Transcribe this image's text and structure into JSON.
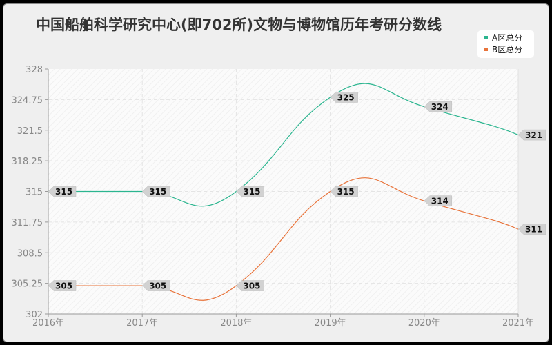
{
  "title": "中国船舶科学研究中心(即702所)文物与博物馆历年考研分数线",
  "legend": [
    {
      "label": "A区总分",
      "color": "#2bb58f"
    },
    {
      "label": "B区总分",
      "color": "#e8733a"
    }
  ],
  "chart_data": {
    "type": "line",
    "title": "中国船舶科学研究中心(即702所)文物与博物馆历年考研分数线",
    "xlabel": "",
    "ylabel": "",
    "categories": [
      "2016年",
      "2017年",
      "2018年",
      "2019年",
      "2020年",
      "2021年"
    ],
    "series": [
      {
        "name": "A区总分",
        "color": "#2bb58f",
        "values": [
          315,
          315,
          315,
          325,
          324,
          321
        ]
      },
      {
        "name": "B区总分",
        "color": "#e8733a",
        "values": [
          305,
          305,
          305,
          315,
          314,
          311
        ]
      }
    ],
    "yticks": [
      "328",
      "324.75",
      "321.5",
      "318.25",
      "315",
      "311.75",
      "308.5",
      "305.25",
      "302"
    ],
    "ylim": [
      302,
      328
    ],
    "grid": true,
    "smooth": true,
    "legend_position": "top-right"
  }
}
